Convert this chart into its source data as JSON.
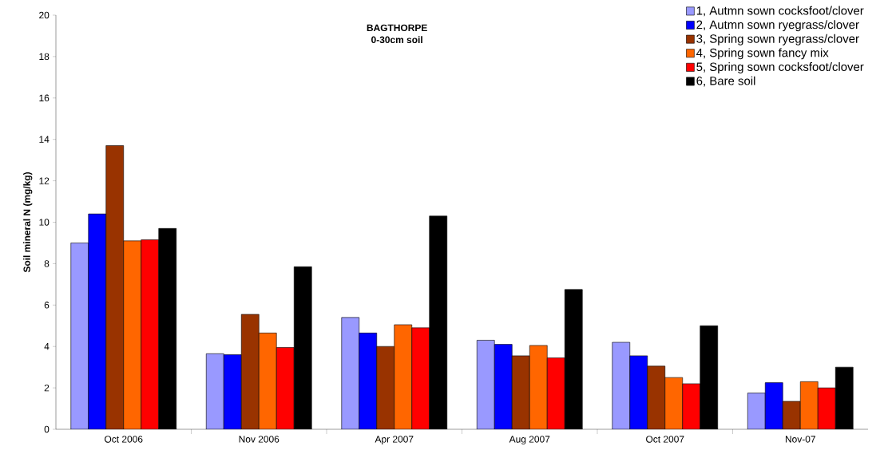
{
  "chart_data": {
    "type": "bar",
    "title": "BAGTHORPE",
    "subtitle": "0-30cm soil",
    "ylabel": "Soil mineral N (mg/kg)",
    "categories": [
      "Oct 2006",
      "Nov 2006",
      "Apr 2007",
      "Aug 2007",
      "Oct 2007",
      "Nov-07"
    ],
    "series": [
      {
        "name": "1, Autmn sown cocksfoot/clover",
        "color": "#9999ff",
        "values": [
          9.0,
          3.65,
          5.4,
          4.3,
          4.2,
          1.75
        ]
      },
      {
        "name": "2, Autmn sown ryegrass/clover",
        "color": "#0000ff",
        "values": [
          10.4,
          3.6,
          4.65,
          4.1,
          3.55,
          2.25
        ]
      },
      {
        "name": "3, Spring sown ryegrass/clover",
        "color": "#993300",
        "values": [
          13.7,
          5.55,
          4.0,
          3.55,
          3.05,
          1.35
        ]
      },
      {
        "name": "4, Spring sown fancy mix",
        "color": "#ff6600",
        "values": [
          9.1,
          4.65,
          5.05,
          4.05,
          2.5,
          2.3
        ]
      },
      {
        "name": "5, Spring sown cocksfoot/clover",
        "color": "#ff0000",
        "values": [
          9.15,
          3.95,
          4.9,
          3.45,
          2.2,
          2.0
        ]
      },
      {
        "name": "6, Bare soil",
        "color": "#000000",
        "values": [
          9.7,
          7.85,
          10.3,
          6.75,
          5.0,
          3.0
        ]
      }
    ],
    "ylim": [
      0,
      20
    ],
    "yticks": [
      0,
      2,
      4,
      6,
      8,
      10,
      12,
      14,
      16,
      18,
      20
    ],
    "grid": false,
    "legend": "top right"
  }
}
